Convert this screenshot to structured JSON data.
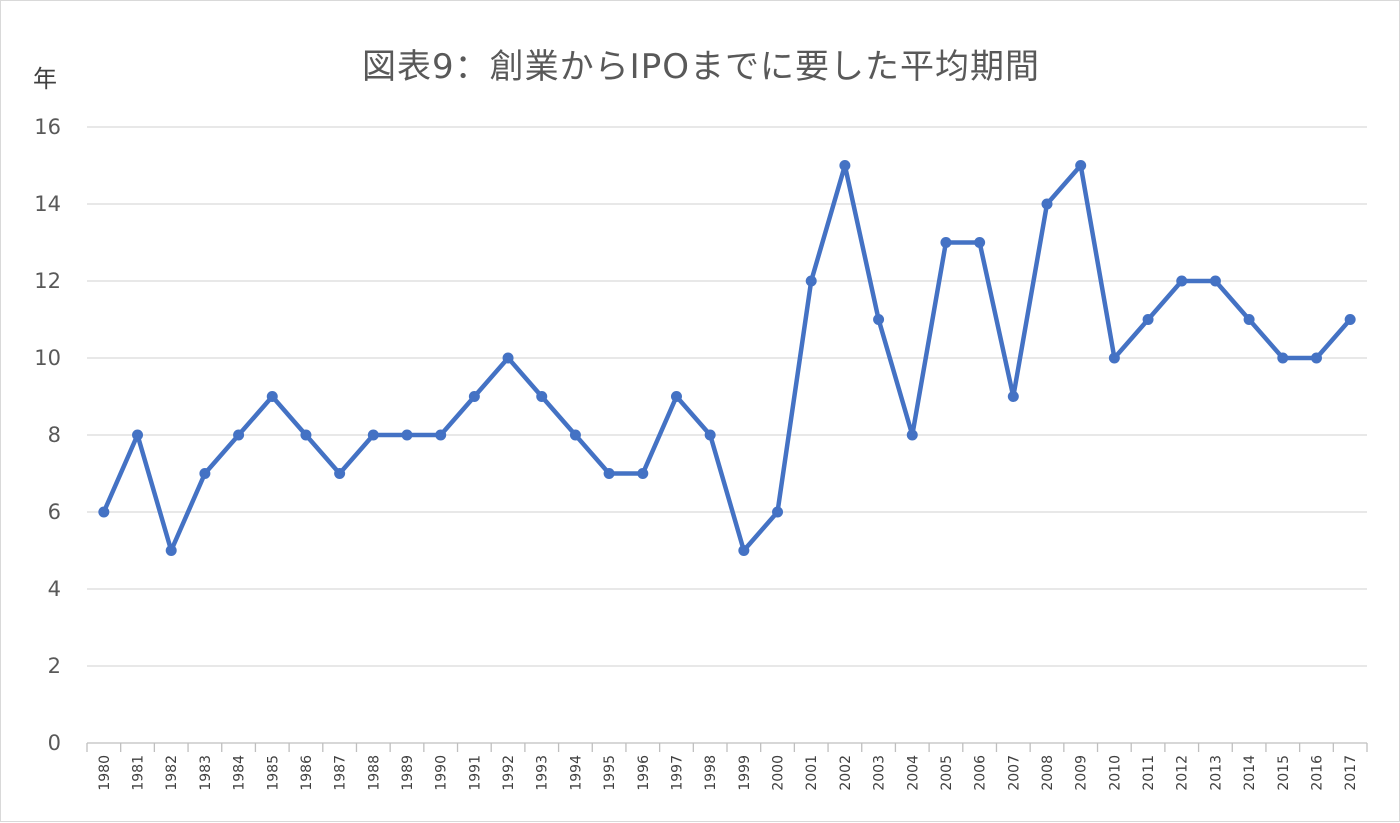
{
  "chart_data": {
    "type": "line",
    "title": "図表9：創業からIPOまでに要した平均期間",
    "ylabel": "年",
    "xlabel": "",
    "categories": [
      "1980",
      "1981",
      "1982",
      "1983",
      "1984",
      "1985",
      "1986",
      "1987",
      "1988",
      "1989",
      "1990",
      "1991",
      "1992",
      "1993",
      "1994",
      "1995",
      "1996",
      "1997",
      "1998",
      "1999",
      "2000",
      "2001",
      "2002",
      "2003",
      "2004",
      "2005",
      "2006",
      "2007",
      "2008",
      "2009",
      "2010",
      "2011",
      "2012",
      "2013",
      "2014",
      "2015",
      "2016",
      "2017"
    ],
    "series": [
      {
        "values": [
          6,
          8,
          5,
          7,
          8,
          9,
          8,
          7,
          8,
          8,
          8,
          9,
          10,
          9,
          8,
          7,
          7,
          9,
          8,
          5,
          6,
          12,
          15,
          11,
          8,
          13,
          13,
          9,
          14,
          15,
          10,
          11,
          12,
          12,
          11,
          10,
          10,
          11
        ],
        "color": "#4472c4"
      }
    ],
    "ylim": [
      0,
      16
    ],
    "yticks": [
      0,
      2,
      4,
      6,
      8,
      10,
      12,
      14,
      16
    ],
    "grid": true,
    "legend": "none"
  }
}
